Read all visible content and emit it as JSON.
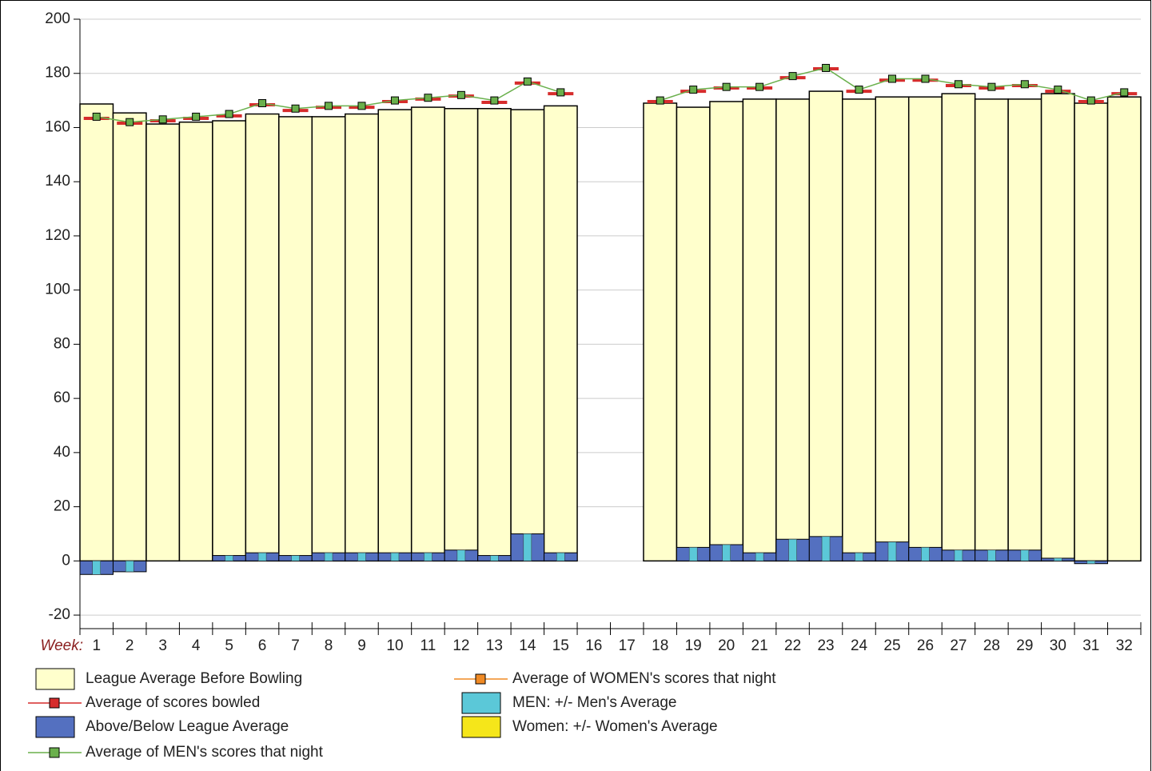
{
  "chart_data": {
    "type": "bowling",
    "x_label": "Week:",
    "categories": [
      "1",
      "2",
      "3",
      "4",
      "5",
      "6",
      "7",
      "8",
      "9",
      "10",
      "11",
      "12",
      "13",
      "14",
      "15",
      "16",
      "17",
      "18",
      "19",
      "20",
      "21",
      "22",
      "23",
      "24",
      "25",
      "26",
      "27",
      "28",
      "29",
      "30",
      "31",
      "32"
    ],
    "ylim": [
      -25,
      200
    ],
    "yticks": [
      -20,
      0,
      20,
      40,
      60,
      80,
      100,
      120,
      140,
      160,
      180,
      200
    ],
    "grid": true,
    "series": [
      {
        "name": "League Average Before Bowling",
        "kind": "bar",
        "color": "#ffffcc",
        "values": [
          168.7,
          165.4,
          161.3,
          162,
          162.5,
          165,
          164,
          164,
          165,
          166.6,
          167.5,
          167,
          167,
          166.6,
          168,
          null,
          null,
          169,
          167.5,
          169.6,
          170.5,
          170.5,
          173.4,
          170.5,
          171.3,
          171.3,
          172.5,
          170.5,
          170.5,
          172.5,
          169,
          171.3
        ]
      },
      {
        "name": "Average of scores bowled",
        "kind": "dash",
        "color": "#d62c2c",
        "values": [
          163.4,
          161.6,
          162.5,
          163.4,
          164.3,
          168.4,
          166.3,
          167.5,
          167.5,
          169.6,
          170.5,
          171.6,
          169.3,
          176.4,
          172.5,
          null,
          null,
          169.6,
          173.4,
          174.6,
          174.6,
          178.4,
          181.7,
          173.4,
          177.5,
          177.5,
          175.5,
          174.6,
          175.5,
          173.4,
          169.6,
          172.5
        ]
      },
      {
        "name": "Above/Below League Average",
        "kind": "delta",
        "color": "#5470c0",
        "values": [
          -5,
          -4,
          0,
          0,
          2,
          3,
          2,
          3,
          3,
          3,
          3,
          4,
          2,
          10,
          3,
          null,
          null,
          0,
          5,
          6,
          3,
          8,
          9,
          3,
          7,
          5,
          4,
          4,
          4,
          1,
          -1,
          0
        ]
      },
      {
        "name": "Average of MEN's scores that night",
        "kind": "line",
        "color": "#6ab04c",
        "values": [
          164,
          162,
          163,
          164,
          165,
          169,
          167,
          168,
          168,
          170,
          171,
          172,
          170,
          177,
          173,
          null,
          null,
          170,
          174,
          175,
          175,
          179,
          182,
          174,
          178,
          178,
          176,
          175,
          176,
          174,
          170,
          173
        ]
      },
      {
        "name": "Average of WOMEN's scores that night",
        "kind": "line",
        "color": "#f08a24",
        "values": [
          null,
          null,
          null,
          null,
          null,
          null,
          null,
          null,
          null,
          null,
          null,
          null,
          null,
          null,
          null,
          null,
          null,
          null,
          null,
          null,
          null,
          null,
          null,
          null,
          null,
          null,
          null,
          null,
          null,
          null,
          null,
          null
        ]
      },
      {
        "name": "MEN: +/- Men's Average",
        "kind": "narrow",
        "color": "#5bc8d8",
        "values": [
          -5,
          -4,
          0,
          0,
          2,
          3,
          2,
          3,
          3,
          3,
          3,
          4,
          2,
          10,
          3,
          null,
          null,
          0,
          5,
          6,
          3,
          8,
          9,
          3,
          7,
          5,
          4,
          4,
          4,
          1,
          -1,
          0
        ]
      },
      {
        "name": "Women: +/- Women's Average",
        "kind": "narrow",
        "color": "#f5e61a",
        "values": [
          null,
          null,
          null,
          null,
          null,
          null,
          null,
          null,
          null,
          null,
          null,
          null,
          null,
          null,
          null,
          null,
          null,
          null,
          null,
          null,
          null,
          null,
          null,
          null,
          null,
          null,
          null,
          null,
          null,
          null,
          null,
          null
        ]
      }
    ]
  }
}
